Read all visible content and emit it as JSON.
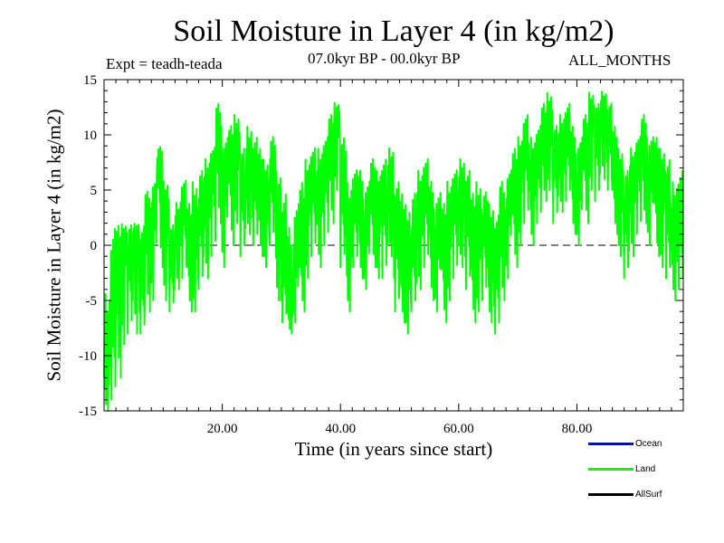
{
  "chart_data": {
    "type": "line",
    "title": "Soil Moisture in Layer 4 (in kg/m2)",
    "experiment_label": "Expt = teadh-teada",
    "period_label": "07.0kyr BP - 00.0kyr BP",
    "months_label": "ALL_MONTHS",
    "xlabel": "Time (in years since start)",
    "ylabel": "Soil Moisture in Layer 4 (in kg/m2)",
    "xlim": [
      0,
      98
    ],
    "ylim": [
      -15,
      15
    ],
    "x_ticks": [
      {
        "value": 20,
        "label": "20.00"
      },
      {
        "value": 40,
        "label": "40.00"
      },
      {
        "value": 60,
        "label": "60.00"
      },
      {
        "value": 80,
        "label": "80.00"
      }
    ],
    "y_ticks": [
      {
        "value": 15,
        "label": "15"
      },
      {
        "value": 10,
        "label": "10"
      },
      {
        "value": 5,
        "label": "5"
      },
      {
        "value": 0,
        "label": "0"
      },
      {
        "value": -5,
        "label": "-5"
      },
      {
        "value": -10,
        "label": "-10"
      },
      {
        "value": -15,
        "label": "-15"
      }
    ],
    "zero_line": {
      "value": 0,
      "style": "dashed"
    },
    "legend": [
      {
        "name": "Ocean",
        "color": "#0000ff"
      },
      {
        "name": "Land",
        "color": "#00ff00"
      },
      {
        "name": "AllSurf",
        "color": "#000000"
      }
    ],
    "series": [
      {
        "name": "Land",
        "color": "#00ff00",
        "x_start": 0,
        "x_step": 1,
        "values": [
          -12,
          -8,
          -3,
          0,
          -2,
          1,
          -4,
          2,
          3,
          7,
          2,
          -2,
          1,
          3,
          -1,
          0,
          2,
          4,
          6,
          9,
          5,
          7,
          8,
          4,
          6,
          5,
          4,
          3,
          6,
          1,
          -3,
          -6,
          -2,
          -1,
          3,
          5,
          4,
          6,
          8,
          11,
          4,
          -1,
          3,
          2,
          1,
          4,
          2,
          3,
          5,
          0,
          -2,
          -3,
          -1,
          2,
          4,
          1,
          0,
          -1,
          1,
          3,
          4,
          2,
          -1,
          0,
          1,
          -2,
          -3,
          1,
          3,
          4,
          6,
          8,
          5,
          7,
          9,
          10,
          7,
          8,
          9,
          6,
          5,
          8,
          11,
          9,
          12,
          10,
          6,
          4,
          2,
          5,
          7,
          8,
          6,
          5,
          4,
          2,
          0,
          1
        ],
        "envelope_max": [
          -4,
          2,
          2,
          2,
          2,
          2,
          2,
          5,
          6,
          9,
          6,
          2,
          4,
          6,
          4,
          6,
          7,
          8,
          9,
          13,
          10,
          11,
          12,
          9,
          11,
          10,
          9,
          8,
          10,
          7,
          5,
          2,
          4,
          6,
          8,
          9,
          9,
          10,
          12,
          13,
          10,
          6,
          7,
          7,
          6,
          8,
          7,
          8,
          9,
          6,
          5,
          4,
          5,
          7,
          8,
          6,
          5,
          4,
          6,
          7,
          8,
          7,
          5,
          6,
          5,
          4,
          3,
          6,
          7,
          9,
          10,
          12,
          10,
          11,
          13,
          14,
          11,
          12,
          13,
          11,
          10,
          12,
          14,
          13,
          14,
          13,
          11,
          9,
          7,
          9,
          10,
          12,
          10,
          10,
          9,
          8,
          6,
          7
        ],
        "envelope_min": [
          -15,
          -14,
          -12,
          -9,
          -8,
          -8,
          -8,
          -6,
          -5,
          -2,
          -5,
          -6,
          -4,
          -3,
          -6,
          -6,
          -4,
          -3,
          -1,
          2,
          -2,
          0,
          2,
          -1,
          1,
          0,
          -1,
          -2,
          0,
          -5,
          -7,
          -8,
          -7,
          -6,
          -3,
          -1,
          -2,
          0,
          2,
          5,
          -2,
          -6,
          -2,
          -3,
          -4,
          -2,
          -3,
          -3,
          -1,
          -6,
          -7,
          -8,
          -6,
          -4,
          -2,
          -5,
          -6,
          -7,
          -5,
          -3,
          -2,
          -4,
          -7,
          -6,
          -5,
          -7,
          -8,
          -5,
          -3,
          -2,
          0,
          2,
          0,
          2,
          4,
          5,
          2,
          3,
          4,
          1,
          0,
          2,
          5,
          4,
          6,
          5,
          1,
          -1,
          -3,
          -1,
          1,
          2,
          0,
          -1,
          -2,
          -3,
          -5,
          -4
        ]
      }
    ]
  }
}
